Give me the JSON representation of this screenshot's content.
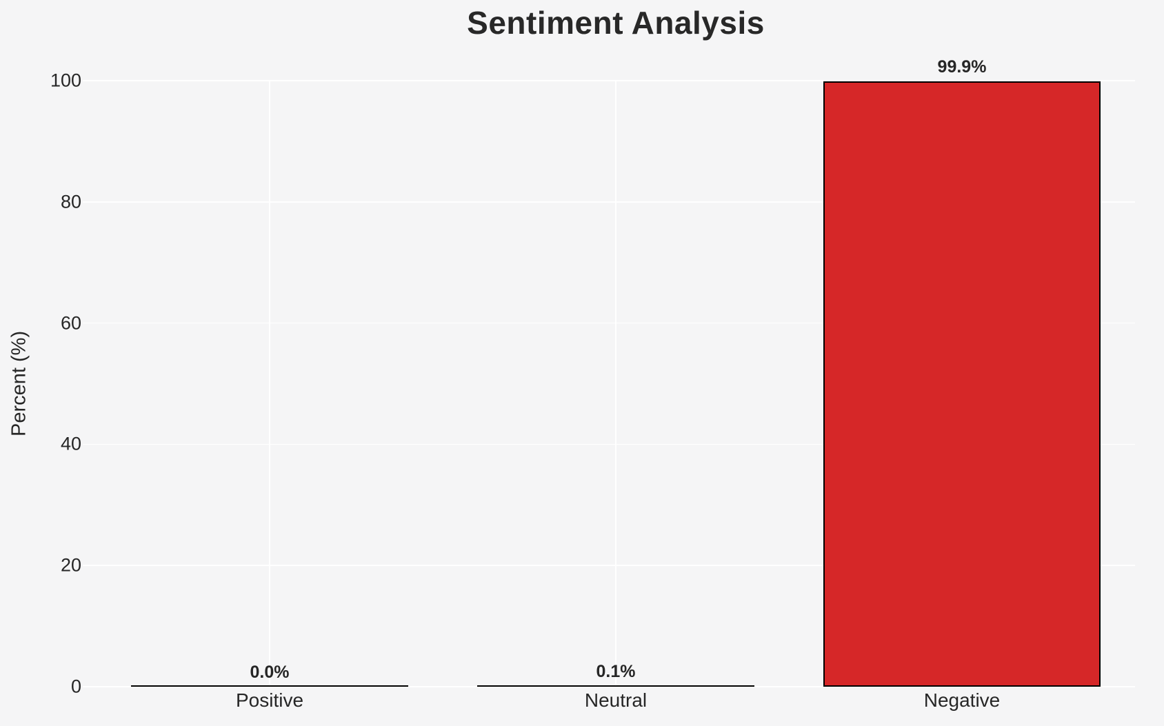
{
  "chart_data": {
    "type": "bar",
    "title": "Sentiment Analysis",
    "ylabel": "Percent (%)",
    "xlabel": "",
    "categories": [
      "Positive",
      "Neutral",
      "Negative"
    ],
    "values": [
      0.0,
      0.1,
      99.9
    ],
    "value_labels": [
      "0.0%",
      "0.1%",
      "99.9%"
    ],
    "bar_fills": [
      "none",
      "none",
      "#d62728"
    ],
    "bar_edge_color": "#000000",
    "ylim": [
      0,
      100
    ],
    "yticks": [
      0,
      20,
      40,
      60,
      80,
      100
    ],
    "grid": "on",
    "grid_color": "#ffffff",
    "background_color": "#f5f5f6",
    "text_color": "#262626",
    "legend": "none"
  }
}
